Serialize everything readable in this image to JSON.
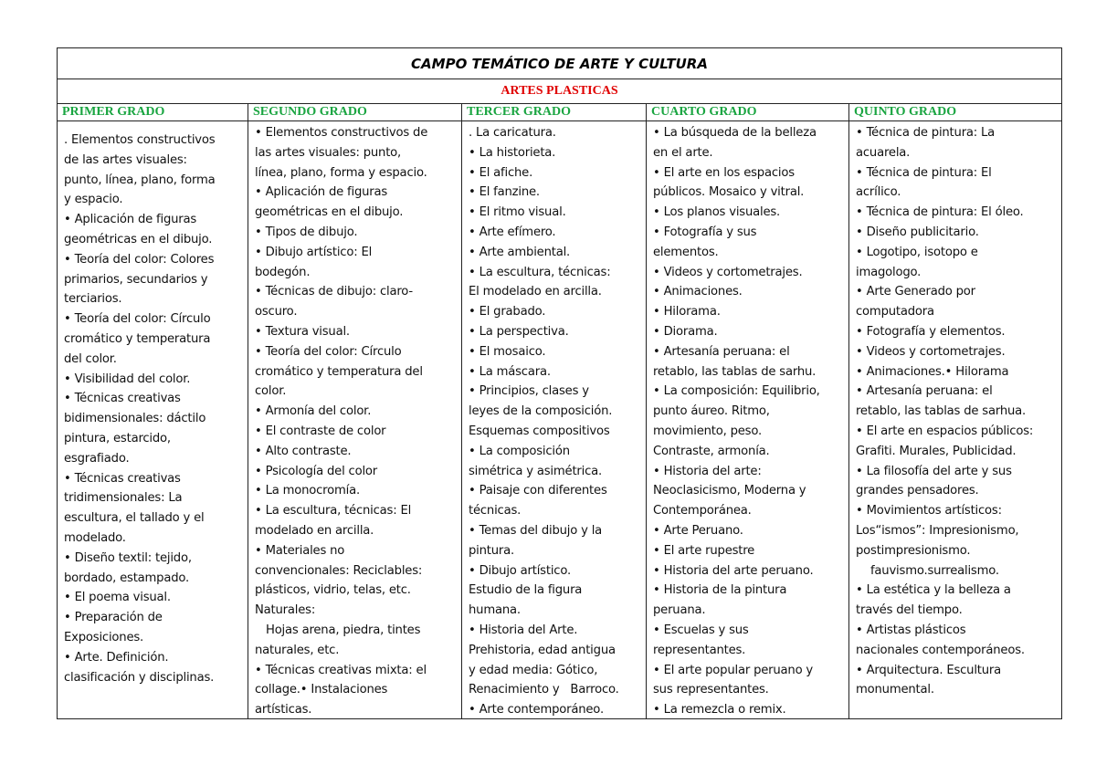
{
  "title": "CAMPO TEMÁTICO DE ARTE Y CULTURA",
  "subtitle": "ARTES PLASTICAS",
  "colors": {
    "subtitle": "#e00000",
    "grade_header": "#1aa541"
  },
  "columns": [
    {
      "header": "PRIMER GRADO",
      "lines": [
        ". Elementos constructivos",
        "de las artes visuales:",
        "punto, línea, plano, forma",
        "y espacio.",
        "• Aplicación de figuras",
        "geométricas en el dibujo.",
        "• Teoría del color: Colores",
        "primarios, secundarios y",
        "terciarios.",
        "• Teoría del color: Círculo",
        "cromático y temperatura",
        "del color.",
        "• Visibilidad del color.",
        "• Técnicas creativas",
        "bidimensionales: dáctilo",
        "pintura, estarcido,",
        "esgrafiado.",
        "• Técnicas creativas",
        "tridimensionales: La",
        "escultura, el tallado y el",
        "modelado.",
        "• Diseño textil: tejido,",
        "bordado, estampado.",
        "• El poema visual.",
        "• Preparación de",
        "Exposiciones.",
        "• Arte. Definición.",
        "clasificación y disciplinas."
      ]
    },
    {
      "header": "SEGUNDO GRADO",
      "lines": [
        "• Elementos constructivos de",
        "las artes visuales: punto,",
        "línea, plano, forma y espacio.",
        "• Aplicación de figuras",
        "geométricas en el dibujo.",
        "• Tipos de dibujo.",
        "• Dibujo artístico: El",
        "bodegón.",
        "• Técnicas de dibujo: claro-",
        "oscuro.",
        "• Textura visual.",
        "• Teoría del color: Círculo",
        "cromático y temperatura del",
        "color.",
        "• Armonía del color.",
        "• El contraste de color",
        "• Alto contraste.",
        "• Psicología del color",
        "• La monocromía.",
        "• La escultura, técnicas: El",
        "modelado en arcilla.",
        "• Materiales no",
        "convencionales: Reciclables:",
        "plásticos, vidrio, telas, etc.",
        "Naturales:",
        "   Hojas arena, piedra, tintes",
        "naturales, etc.",
        "• Técnicas creativas mixta: el",
        "collage.• Instalaciones",
        "artísticas."
      ]
    },
    {
      "header": "TERCER GRADO",
      "lines": [
        ". La caricatura.",
        "• La historieta.",
        "• El afiche.",
        "• El fanzine.",
        "• El ritmo visual.",
        "• Arte efímero.",
        "• Arte ambiental.",
        "• La escultura, técnicas:",
        "El modelado en arcilla.",
        "• El grabado.",
        "• La perspectiva.",
        "• El mosaico.",
        "• La máscara.",
        "• Principios, clases y",
        "leyes de la composición.",
        "Esquemas compositivos",
        "• La composición",
        "simétrica y asimétrica.",
        "• Paisaje con diferentes",
        "técnicas.",
        "• Temas del dibujo y la",
        "pintura.",
        "• Dibujo artístico.",
        "Estudio de la figura",
        "humana.",
        "• Historia del Arte.",
        "Prehistoria, edad antigua",
        "y edad media: Gótico,",
        "Renacimiento y   Barroco.",
        "• Arte contemporáneo."
      ]
    },
    {
      "header": "CUARTO GRADO",
      "lines": [
        "• La búsqueda de la belleza",
        "en el arte.",
        "• El arte en los espacios",
        "públicos. Mosaico y vitral.",
        "• Los planos visuales.",
        "• Fotografía y sus",
        "elementos.",
        "• Videos y cortometrajes.",
        "• Animaciones.",
        "• Hilorama.",
        "• Diorama.",
        "• Artesanía peruana: el",
        "retablo, las tablas de sarhu.",
        "• La composición: Equilibrio,",
        "punto áureo. Ritmo,",
        "movimiento, peso.",
        "Contraste, armonía.",
        "• Historia del arte:",
        "Neoclasicismo, Moderna y",
        "Contemporánea.",
        "• Arte Peruano.",
        "• El arte rupestre",
        "• Historia del arte peruano.",
        "• Historia de la pintura",
        "peruana.",
        "• Escuelas y sus",
        "representantes.",
        "• El arte popular peruano y",
        "sus representantes.",
        "• La remezcla o remix."
      ]
    },
    {
      "header": "QUINTO GRADO",
      "lines": [
        "• Técnica de pintura: La",
        "acuarela.",
        "• Técnica de pintura: El",
        "acrílico.",
        "• Técnica de pintura: El óleo.",
        "• Diseño publicitario.",
        "• Logotipo, isotopo e",
        "imagologo.",
        "• Arte Generado por",
        "computadora",
        "• Fotografía y elementos.",
        "• Videos y cortometrajes.",
        "• Animaciones.• Hilorama",
        "• Artesanía peruana: el",
        "retablo, las tablas de sarhua.",
        "• El arte en espacios públicos:",
        "Grafiti. Murales, Publicidad.",
        "• La filosofía del arte y sus",
        "grandes pensadores.",
        "• Movimientos artísticos:",
        "Los“ismos”: Impresionismo,",
        "postimpresionismo.",
        "    fauvismo.surrealismo.",
        "• La estética y la belleza a",
        "través del tiempo.",
        "• Artistas plásticos",
        "nacionales contemporáneos.",
        "• Arquitectura. Escultura",
        "monumental."
      ]
    }
  ]
}
